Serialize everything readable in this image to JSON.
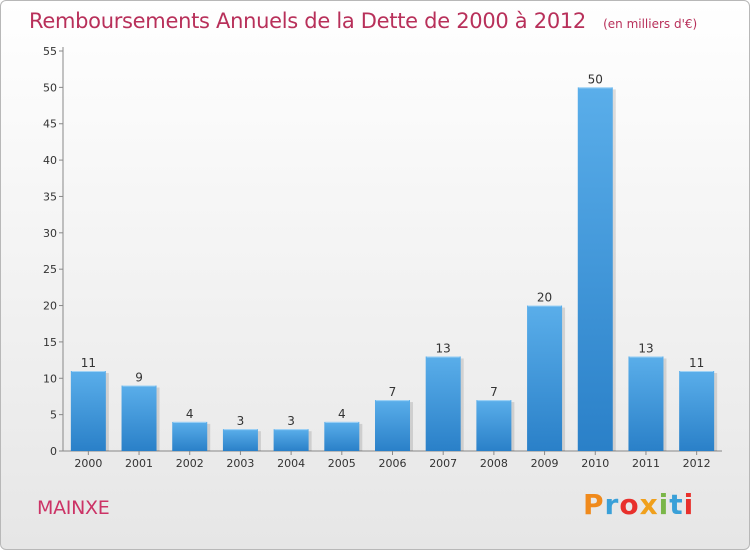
{
  "title": "Remboursements Annuels de la Dette de 2000 à 2012",
  "unit_note": "(en milliers d'€)",
  "commune": "MAINXE",
  "brand": {
    "text": "Proxiti",
    "letter_colors": [
      "#f08a1c",
      "#3aa0d8",
      "#e8302c",
      "#f0a01c",
      "#7ab648",
      "#3aa0d8",
      "#e8302c"
    ]
  },
  "colors": {
    "bar_light": "#5aaeea",
    "bar_dark": "#2a80c8",
    "title": "#b8305a"
  },
  "chart_data": {
    "type": "bar",
    "categories": [
      "2000",
      "2001",
      "2002",
      "2003",
      "2004",
      "2005",
      "2006",
      "2007",
      "2008",
      "2009",
      "2010",
      "2011",
      "2012"
    ],
    "values": [
      11,
      9,
      4,
      3,
      3,
      4,
      7,
      13,
      7,
      20,
      50,
      13,
      11
    ],
    "data_labels": [
      "11",
      "9",
      "4",
      "3",
      "3",
      "4",
      "7",
      "13",
      "7",
      "20",
      "50",
      "13",
      "11"
    ],
    "title": "Remboursements Annuels de la Dette de 2000 à 2012",
    "xlabel": "",
    "ylabel": "",
    "ylim": [
      0,
      55
    ],
    "yticks": [
      0,
      5,
      10,
      15,
      20,
      25,
      30,
      35,
      40,
      45,
      50,
      55
    ],
    "grid": false,
    "legend": "none"
  }
}
